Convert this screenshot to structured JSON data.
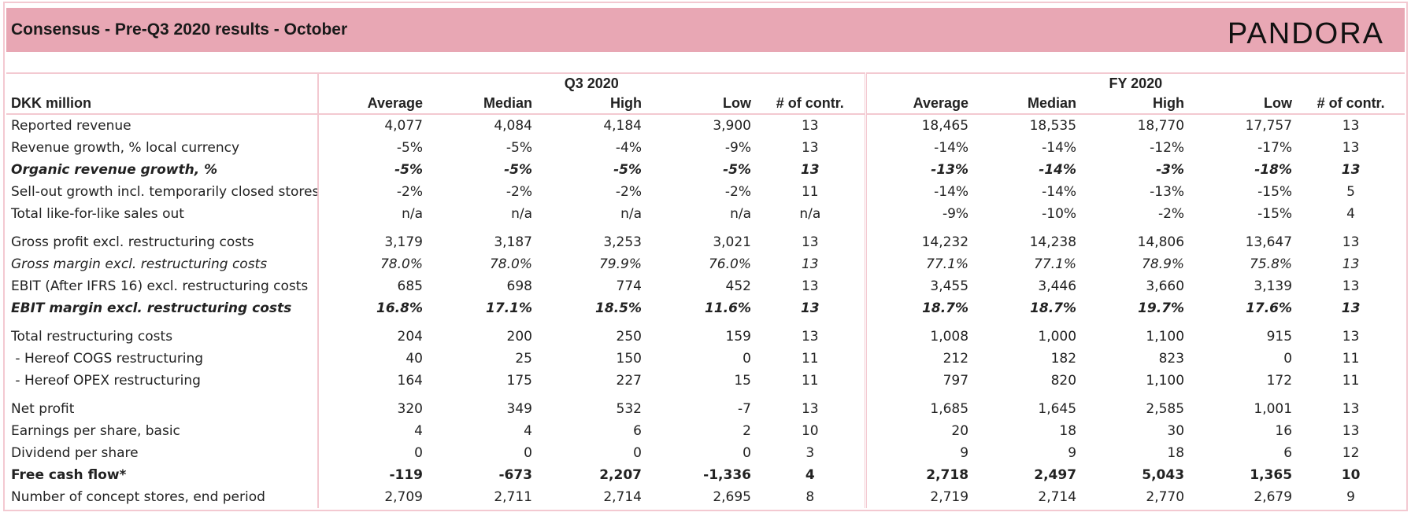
{
  "header": {
    "title": "Consensus - Pre-Q3 2020 results - October",
    "logo": "PANDORA"
  },
  "table": {
    "unit_label": "DKK million",
    "groups": [
      "Q3 2020",
      "FY 2020"
    ],
    "columns": [
      "Average",
      "Median",
      "High",
      "Low",
      "# of contr."
    ],
    "sections": [
      {
        "rows": [
          {
            "label": "Reported revenue",
            "style": "normal",
            "values": [
              "4,077",
              "4,084",
              "4,184",
              "3,900",
              "13",
              "18,465",
              "18,535",
              "18,770",
              "17,757",
              "13"
            ]
          },
          {
            "label": "Revenue growth, % local currency",
            "style": "normal",
            "values": [
              "-5%",
              "-5%",
              "-4%",
              "-9%",
              "13",
              "-14%",
              "-14%",
              "-12%",
              "-17%",
              "13"
            ]
          },
          {
            "label": "Organic revenue growth, %",
            "style": "bold-italic",
            "values": [
              "-5%",
              "-5%",
              "-5%",
              "-5%",
              "13",
              "-13%",
              "-14%",
              "-3%",
              "-18%",
              "13"
            ]
          },
          {
            "label": "Sell-out growth incl. temporarily closed stores",
            "style": "normal",
            "values": [
              "-2%",
              "-2%",
              "-2%",
              "-2%",
              "11",
              "-14%",
              "-14%",
              "-13%",
              "-15%",
              "5"
            ]
          },
          {
            "label": "Total like-for-like sales out",
            "style": "normal",
            "values": [
              "n/a",
              "n/a",
              "n/a",
              "n/a",
              "n/a",
              "-9%",
              "-10%",
              "-2%",
              "-15%",
              "4"
            ]
          }
        ]
      },
      {
        "rows": [
          {
            "label": "Gross profit excl. restructuring costs",
            "style": "normal",
            "values": [
              "3,179",
              "3,187",
              "3,253",
              "3,021",
              "13",
              "14,232",
              "14,238",
              "14,806",
              "13,647",
              "13"
            ]
          },
          {
            "label": "Gross margin excl. restructuring costs",
            "style": "italic",
            "values": [
              "78.0%",
              "78.0%",
              "79.9%",
              "76.0%",
              "13",
              "77.1%",
              "77.1%",
              "78.9%",
              "75.8%",
              "13"
            ]
          },
          {
            "label": "EBIT (After IFRS 16) excl. restructuring costs",
            "style": "normal",
            "values": [
              "685",
              "698",
              "774",
              "452",
              "13",
              "3,455",
              "3,446",
              "3,660",
              "3,139",
              "13"
            ]
          },
          {
            "label": "EBIT margin excl. restructuring costs",
            "style": "bold-italic",
            "values": [
              "16.8%",
              "17.1%",
              "18.5%",
              "11.6%",
              "13",
              "18.7%",
              "18.7%",
              "19.7%",
              "17.6%",
              "13"
            ]
          }
        ]
      },
      {
        "rows": [
          {
            "label": "Total restructuring costs",
            "style": "normal",
            "values": [
              "204",
              "200",
              "250",
              "159",
              "13",
              "1,008",
              "1,000",
              "1,100",
              "915",
              "13"
            ]
          },
          {
            "label": " - Hereof COGS restructuring",
            "style": "normal",
            "values": [
              "40",
              "25",
              "150",
              "0",
              "11",
              "212",
              "182",
              "823",
              "0",
              "11"
            ]
          },
          {
            "label": " - Hereof OPEX restructuring",
            "style": "normal",
            "values": [
              "164",
              "175",
              "227",
              "15",
              "11",
              "797",
              "820",
              "1,100",
              "172",
              "11"
            ]
          }
        ]
      },
      {
        "rows": [
          {
            "label": "Net profit",
            "style": "normal",
            "values": [
              "320",
              "349",
              "532",
              "-7",
              "13",
              "1,685",
              "1,645",
              "2,585",
              "1,001",
              "13"
            ]
          },
          {
            "label": "Earnings per share, basic",
            "style": "normal",
            "values": [
              "4",
              "4",
              "6",
              "2",
              "10",
              "20",
              "18",
              "30",
              "16",
              "13"
            ]
          },
          {
            "label": "Dividend per share",
            "style": "normal",
            "values": [
              "0",
              "0",
              "0",
              "0",
              "3",
              "9",
              "9",
              "18",
              "6",
              "12"
            ]
          },
          {
            "label": "Free cash flow*",
            "style": "bold",
            "values": [
              "-119",
              "-673",
              "2,207",
              "-1,336",
              "4",
              "2,718",
              "2,497",
              "5,043",
              "1,365",
              "10"
            ]
          },
          {
            "label": "Number of concept stores, end period",
            "style": "normal",
            "values": [
              "2,709",
              "2,711",
              "2,714",
              "2,695",
              "8",
              "2,719",
              "2,714",
              "2,770",
              "2,679",
              "9"
            ]
          }
        ]
      }
    ]
  }
}
